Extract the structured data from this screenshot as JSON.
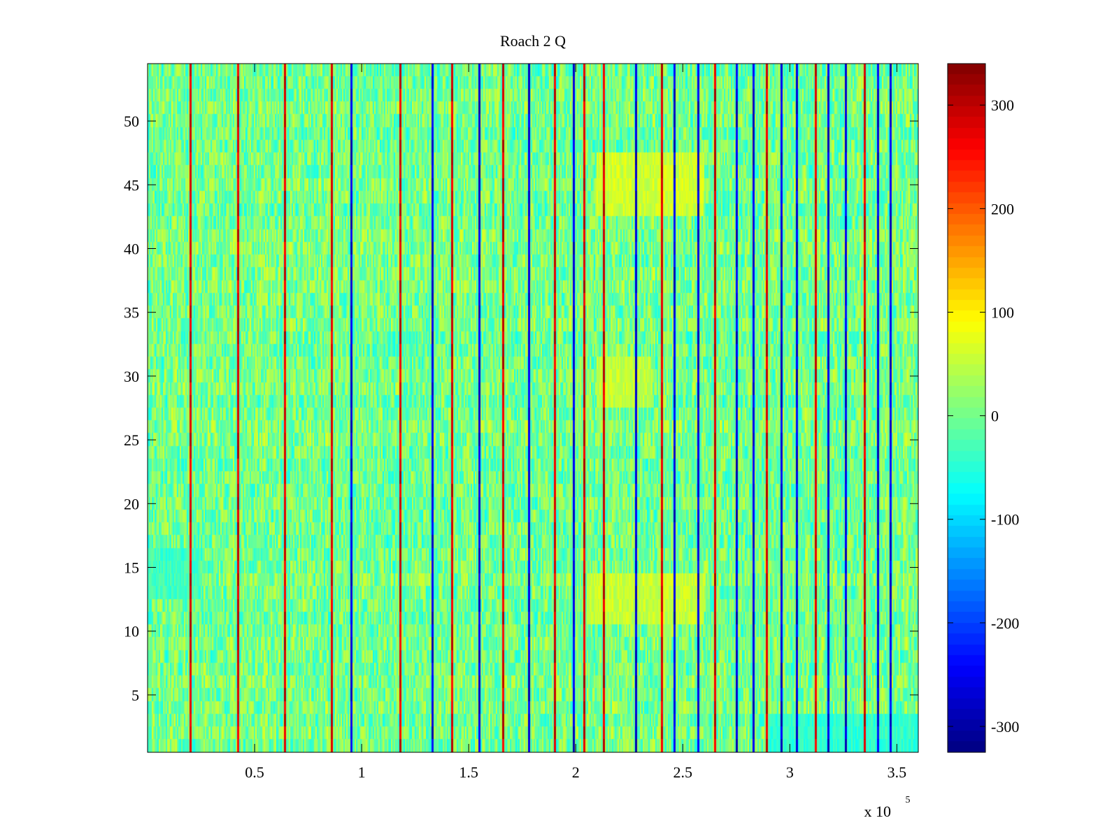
{
  "chart_data": {
    "type": "heatmap",
    "title": "Roach 2 Q",
    "xlabel": "",
    "ylabel": "",
    "x_multiplier_label": {
      "base": "x 10",
      "exponent": "5"
    },
    "xlim": [
      0,
      360000
    ],
    "ylim": [
      0.5,
      54.5
    ],
    "rows": 54,
    "x_ticks": [
      {
        "value": 50000,
        "label": "0.5"
      },
      {
        "value": 100000,
        "label": "1"
      },
      {
        "value": 150000,
        "label": "1.5"
      },
      {
        "value": 200000,
        "label": "2"
      },
      {
        "value": 250000,
        "label": "2.5"
      },
      {
        "value": 300000,
        "label": "3"
      },
      {
        "value": 350000,
        "label": "3.5"
      }
    ],
    "y_ticks": [
      {
        "value": 5,
        "label": "5"
      },
      {
        "value": 10,
        "label": "10"
      },
      {
        "value": 15,
        "label": "15"
      },
      {
        "value": 20,
        "label": "20"
      },
      {
        "value": 25,
        "label": "25"
      },
      {
        "value": 30,
        "label": "30"
      },
      {
        "value": 35,
        "label": "35"
      },
      {
        "value": 40,
        "label": "40"
      },
      {
        "value": 45,
        "label": "45"
      },
      {
        "value": 50,
        "label": "50"
      }
    ],
    "colorbar": {
      "colormap": "jet",
      "clim": [
        -325,
        340
      ],
      "ticks": [
        {
          "value": -300,
          "label": "-300"
        },
        {
          "value": -200,
          "label": "-200"
        },
        {
          "value": -100,
          "label": "-100"
        },
        {
          "value": 0,
          "label": "0"
        },
        {
          "value": 100,
          "label": "100"
        },
        {
          "value": 200,
          "label": "200"
        },
        {
          "value": 300,
          "label": "300"
        }
      ]
    },
    "background_value_range": [
      -60,
      60
    ],
    "high_value_stripes_x": [
      20000,
      42000,
      64000,
      86000,
      118000,
      142000,
      166000,
      190000,
      204000,
      213000,
      240000,
      265000,
      289000,
      312000,
      335000
    ],
    "low_value_stripes_x": [
      95000,
      133000,
      155000,
      178000,
      199000,
      228000,
      246000,
      257000,
      275000,
      283000,
      296000,
      303000,
      318000,
      326000,
      341000,
      347000
    ],
    "warm_regions": [
      {
        "x_range": [
          210000,
          260000
        ],
        "y_range": [
          43,
          47
        ],
        "value": 60
      },
      {
        "x_range": [
          205000,
          260000
        ],
        "y_range": [
          11,
          14
        ],
        "value": 55
      },
      {
        "x_range": [
          210000,
          235000
        ],
        "y_range": [
          28,
          31
        ],
        "value": 50
      }
    ],
    "cool_regions": [
      {
        "x_range": [
          0,
          25000
        ],
        "y_range": [
          13,
          16
        ],
        "value": -35
      },
      {
        "x_range": [
          290000,
          360000
        ],
        "y_range": [
          1,
          3
        ],
        "value": -45
      }
    ]
  }
}
